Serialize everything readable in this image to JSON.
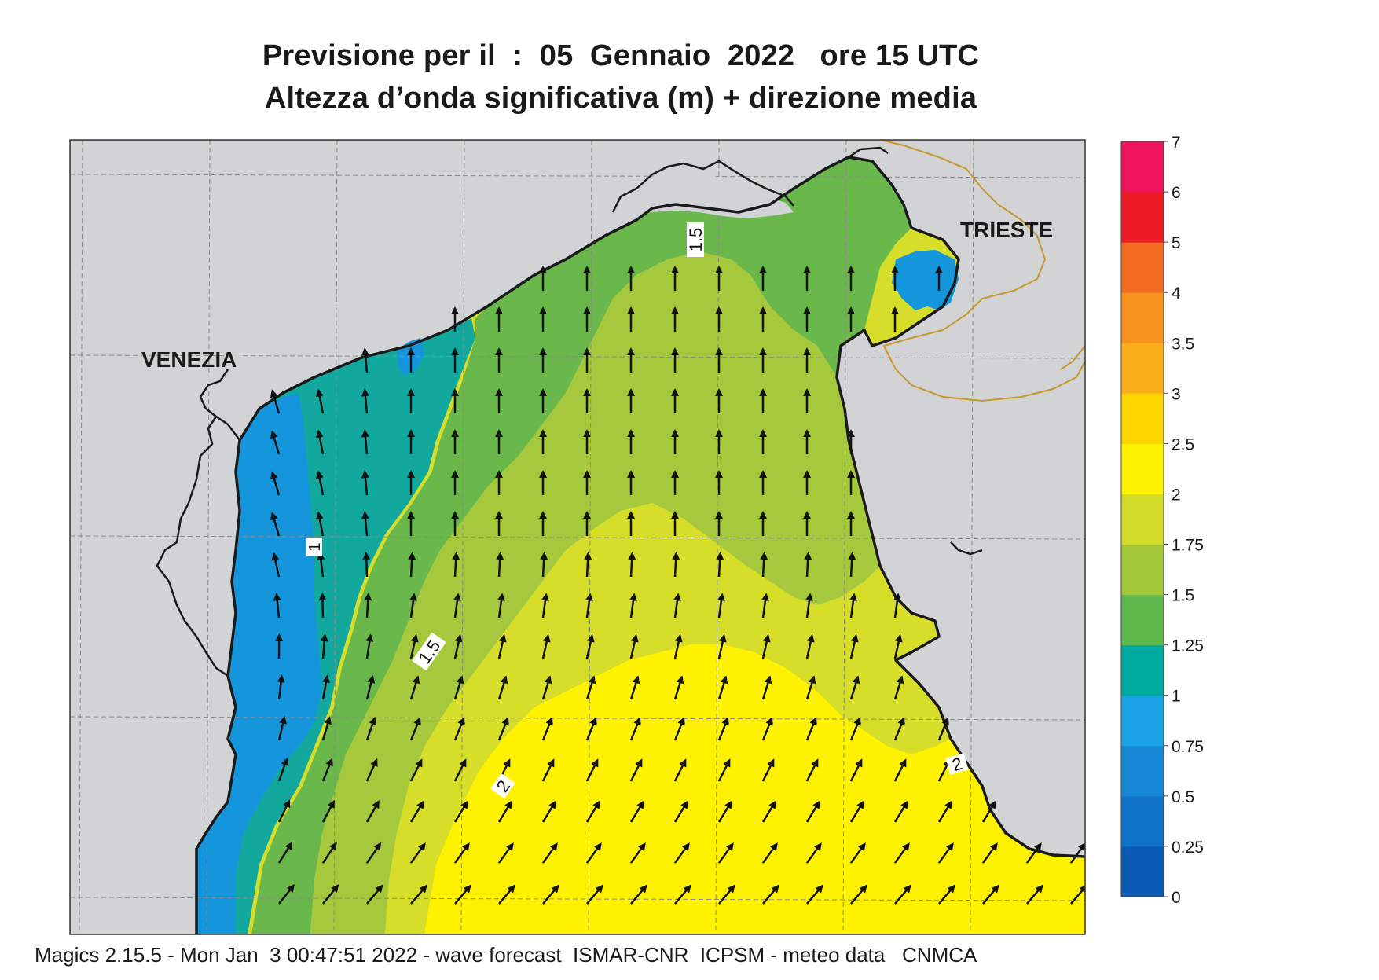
{
  "title_line1": "Previsione per il  :  05  Gennaio  2022   ore 15 UTC",
  "title_line2": "Altezza d’onda significativa (m) + direzione media",
  "places": [
    "VENEZIA",
    "TRIESTE"
  ],
  "contour_labels": [
    "1",
    "1.5",
    "1.5",
    "2",
    "2"
  ],
  "colorbar": {
    "ticks": [
      "0",
      "0.25",
      "0.5",
      "0.75",
      "1",
      "1.25",
      "1.5",
      "1.75",
      "2",
      "2.5",
      "3",
      "3.5",
      "4",
      "5",
      "6",
      "7"
    ],
    "colors": [
      "#0a5bb5",
      "#0f74c9",
      "#1688d6",
      "#1aa3e6",
      "#00a99d",
      "#5fb84c",
      "#a2c83a",
      "#d4dc2b",
      "#fff200",
      "#ffd500",
      "#fbb01a",
      "#f7931e",
      "#f26c22",
      "#ed1c24",
      "#ed145b"
    ]
  },
  "sea_colors": {
    "blue": "#1596dc",
    "teal": "#13a89e",
    "green": "#6ab84c",
    "lightgreen": "#a6c83c",
    "yellowgreen": "#d6de2a",
    "yellow": "#fff200"
  },
  "land_color": "#d2d3d5",
  "footer": "Magics 2.15.5 - Mon Jan  3 00:47:51 2022 - wave forecast  ISMAR-CNR  ICPSM - meteo data   CNMCA"
}
